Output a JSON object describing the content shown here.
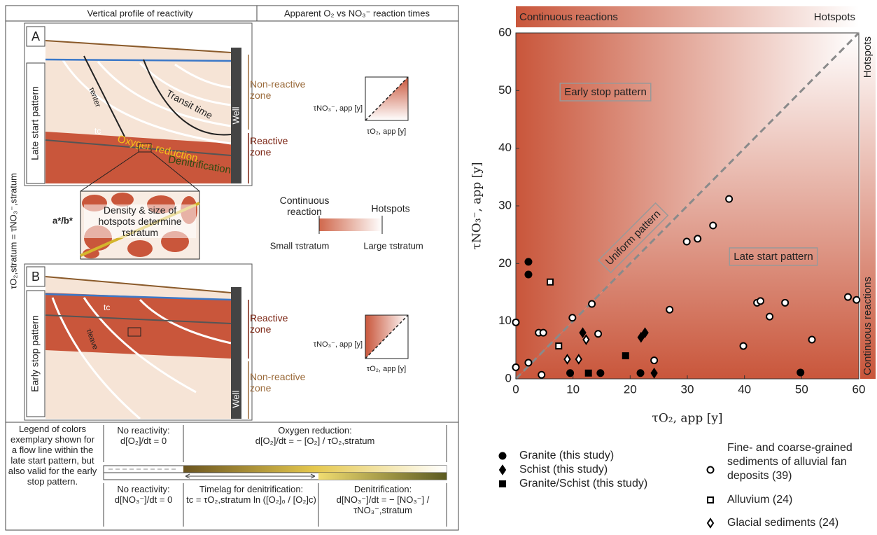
{
  "diagram": {
    "header": {
      "left": "Vertical profile of reactivity",
      "right": "Apparent O₂ vs NO₃⁻ reaction times"
    },
    "side_label": "τO₂,stratum = τNO₃⁻,stratum",
    "panel_a": {
      "letter": "A",
      "pattern": "Late start pattern",
      "non_reactive": "Non-reactive zone",
      "reactive": "Reactive zone",
      "transit": "Transit time",
      "well": "Well",
      "tau_enter": "τenter",
      "tc": "tc",
      "oxygen": "Oxygen reduction",
      "denit": "Denitrification",
      "plot_y": "τNO₃⁻, app [y]",
      "plot_x": "τO₂, app [y]"
    },
    "inset": {
      "ratio": "a*/b*",
      "text": "Density & size of hotspots determine τstratum"
    },
    "colorbar": {
      "left_top": "Continuous reaction",
      "right_top": "Hotspots",
      "left_bottom": "Small τstratum",
      "right_bottom": "Large τstratum"
    },
    "panel_b": {
      "letter": "B",
      "pattern": "Early stop pattern",
      "reactive": "Reactive zone",
      "non_reactive": "Non-reactive zone",
      "well": "Well",
      "tc": "tc",
      "tau_leave": "τleave",
      "plot_y": "τNO₃⁻, app [y]",
      "plot_x": "τO₂, app [y]"
    },
    "legend": {
      "intro": "Legend of colors exemplary shown for a flow line within the late start pattern, but also valid for the early stop pattern.",
      "no_react_o2": "No reactivity:",
      "eq_o2_zero": "d[O₂]/dt = 0",
      "oxy_title": "Oxygen reduction:",
      "eq_oxy": "d[O₂]/dt = − [O₂] / τO₂,stratum",
      "no_react_no3": "No reactivity:",
      "eq_no3_zero": "d[NO₃⁻]/dt = 0",
      "lag_title": "Timelag for denitrification:",
      "eq_lag": "tc = τO₂,stratum ln ([O₂]₀ / [O₂]c)",
      "denit_title": "Denitrification:",
      "eq_denit": "d[NO₃⁻]/dt = − [NO₃⁻] / τNO₃⁻,stratum"
    }
  },
  "chart_data": {
    "type": "scatter",
    "xlabel": "τO₂, app [y]",
    "ylabel": "τNO₃⁻, app [y]",
    "xlim": [
      0,
      60
    ],
    "ylim": [
      0,
      60
    ],
    "xticks": [
      0,
      10,
      20,
      30,
      40,
      50,
      60
    ],
    "yticks": [
      0,
      10,
      20,
      30,
      40,
      50,
      60
    ],
    "annotations": [
      "Early stop pattern",
      "Late start pattern",
      "Uniform pattern"
    ],
    "top_band": [
      "Continuous reactions",
      "Hotspots"
    ],
    "right_band": [
      "Hotspots",
      "Continuous reactions"
    ],
    "series": [
      {
        "name": "Granite (this study)",
        "marker": "circle",
        "filled": true,
        "color": "#000000",
        "x": [
          2.2,
          2.2,
          9.5,
          14.8,
          21.8,
          49.8
        ],
        "values": [
          20.3,
          18.1,
          1,
          1,
          1,
          1.1
        ]
      },
      {
        "name": "Schist (this study)",
        "marker": "diamond",
        "filled": true,
        "color": "#000000",
        "x": [
          11.7,
          21.9,
          22.6,
          24.2
        ],
        "values": [
          8,
          7.2,
          8,
          1
        ]
      },
      {
        "name": "Granite/Schist (this study)",
        "marker": "square",
        "filled": true,
        "color": "#000000",
        "x": [
          12.7,
          19.2
        ],
        "values": [
          1,
          4
        ]
      },
      {
        "name": "Fine- and coarse-grained sediments of alluvial fan deposits (39)",
        "marker": "circle",
        "filled": false,
        "color": "#000000",
        "x": [
          0,
          0,
          2.2,
          4,
          4.8,
          4.5,
          9.9,
          13.3,
          14.4,
          24.2,
          26.9,
          29.9,
          31.8,
          34.5,
          37.3,
          39.8,
          42.2,
          42.8,
          44.4,
          47.1,
          51.8,
          58.1,
          59.6
        ],
        "values": [
          9.8,
          2,
          2.8,
          8,
          8,
          0.7,
          10.6,
          13,
          7.8,
          3.2,
          12,
          23.8,
          24.3,
          26.6,
          31.2,
          5.7,
          13.2,
          13.5,
          10.8,
          13.2,
          6.8,
          14.2,
          13.7
        ]
      },
      {
        "name": "Alluvium (24)",
        "marker": "square",
        "filled": false,
        "color": "#000000",
        "x": [
          6,
          7.5
        ],
        "values": [
          16.8,
          5.7
        ]
      },
      {
        "name": "Glacial sediments (24)",
        "marker": "diamond",
        "filled": false,
        "color": "#000000",
        "x": [
          9,
          11,
          12.3
        ],
        "values": [
          3.4,
          3.4,
          6.8
        ]
      }
    ]
  }
}
